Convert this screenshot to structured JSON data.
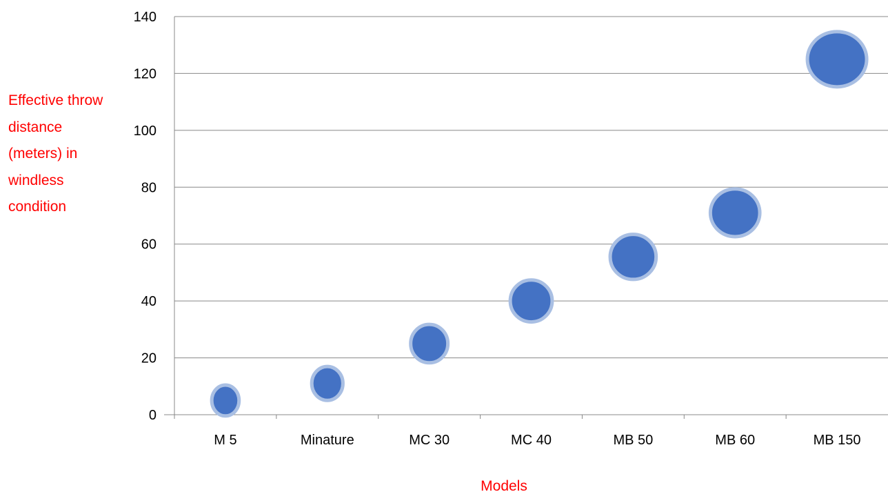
{
  "chart_data": {
    "type": "bubble",
    "title": "",
    "xlabel": "Models",
    "ylabel": "Effective throw distance (meters) in windless condition",
    "categories": [
      "M 5",
      "Minature",
      "MC 30",
      "MC 40",
      "MB 50",
      "MB 60",
      "MB 150"
    ],
    "values": [
      5,
      11,
      25,
      40,
      55.5,
      71,
      125
    ],
    "ylim": [
      0,
      140
    ],
    "yticks": [
      0,
      20,
      40,
      60,
      80,
      100,
      120,
      140
    ],
    "grid": true,
    "legend": "none"
  },
  "colors": {
    "bubble_fill": "#4472c4",
    "bubble_outline": "#a9bfe3",
    "label_color": "#ff0000",
    "grid_color": "#888888"
  }
}
